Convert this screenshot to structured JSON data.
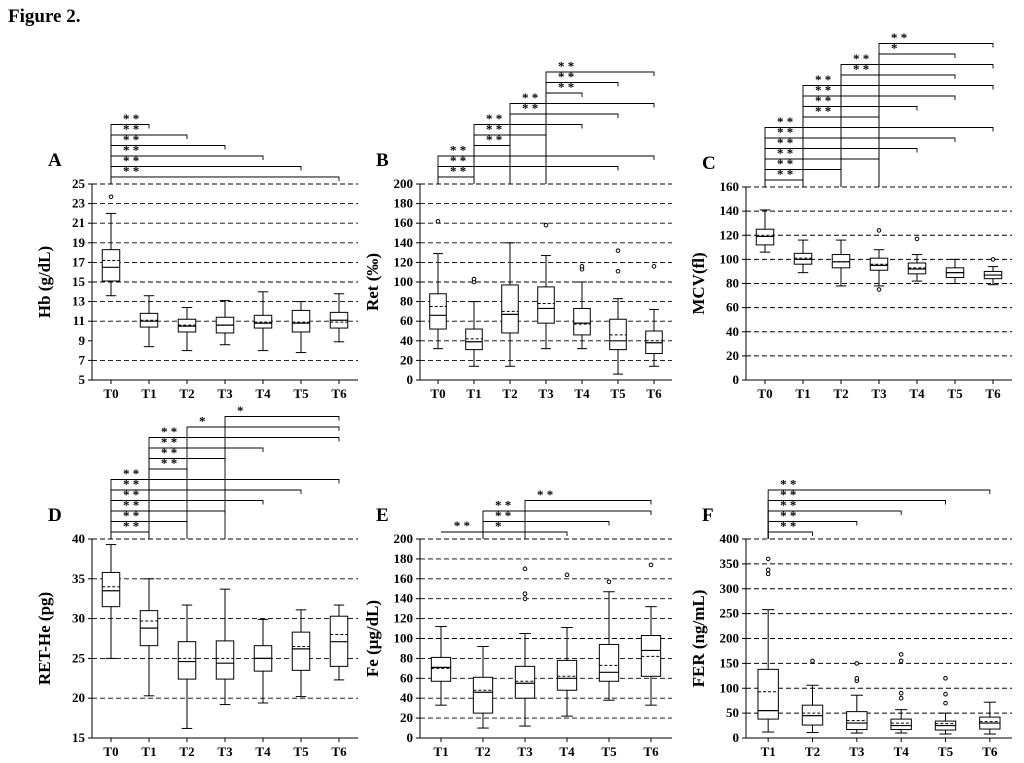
{
  "figure": {
    "title": "Figure 2."
  },
  "chart_data": [
    {
      "type": "box",
      "panel": "A",
      "ylabel": "Hb (g/dL)",
      "ylim": [
        5,
        25
      ],
      "yticks": [
        5,
        7,
        9,
        11,
        13,
        15,
        17,
        19,
        21,
        23,
        25
      ],
      "dashed_lines": [
        7,
        11,
        13,
        15,
        17,
        19,
        21,
        23,
        25
      ],
      "categories": [
        "T0",
        "T1",
        "T2",
        "T3",
        "T4",
        "T5",
        "T6"
      ],
      "boxes": [
        {
          "min": 13.6,
          "q1": 15.1,
          "median": 16.5,
          "mean": 17.2,
          "q3": 18.3,
          "max": 22.0,
          "outliers": [
            23.7
          ]
        },
        {
          "min": 8.4,
          "q1": 10.4,
          "median": 11.0,
          "mean": 11.1,
          "q3": 11.8,
          "max": 13.6,
          "outliers": []
        },
        {
          "min": 8.0,
          "q1": 9.9,
          "median": 10.5,
          "mean": 10.6,
          "q3": 11.2,
          "max": 12.4,
          "outliers": []
        },
        {
          "min": 8.6,
          "q1": 9.8,
          "median": 10.6,
          "mean": 10.6,
          "q3": 11.4,
          "max": 13.1,
          "outliers": []
        },
        {
          "min": 8.0,
          "q1": 10.3,
          "median": 10.8,
          "mean": 10.9,
          "q3": 11.6,
          "max": 14.0,
          "outliers": []
        },
        {
          "min": 7.8,
          "q1": 9.9,
          "median": 10.8,
          "mean": 10.9,
          "q3": 12.1,
          "max": 13.0,
          "outliers": []
        },
        {
          "min": 8.9,
          "q1": 10.3,
          "median": 11.1,
          "mean": 10.9,
          "q3": 11.9,
          "max": 13.8,
          "outliers": []
        }
      ],
      "significance": [
        {
          "from": 0,
          "to": 6,
          "label": "* *"
        },
        {
          "from": 0,
          "to": 5,
          "label": "* *"
        },
        {
          "from": 0,
          "to": 4,
          "label": "* *"
        },
        {
          "from": 0,
          "to": 3,
          "label": "* *"
        },
        {
          "from": 0,
          "to": 2,
          "label": "* *"
        },
        {
          "from": 0,
          "to": 1,
          "label": "* *"
        }
      ]
    },
    {
      "type": "box",
      "panel": "B",
      "ylabel": "Ret (‰)",
      "ylim": [
        0,
        200
      ],
      "yticks": [
        0,
        20,
        40,
        60,
        80,
        100,
        120,
        140,
        160,
        180,
        200
      ],
      "dashed_lines": [
        20,
        40,
        60,
        80,
        100,
        120,
        140,
        160,
        180,
        200
      ],
      "categories": [
        "T0",
        "T1",
        "T2",
        "T3",
        "T4",
        "T5",
        "T6"
      ],
      "boxes": [
        {
          "min": 32,
          "q1": 52,
          "median": 66,
          "mean": 75,
          "q3": 88,
          "max": 129,
          "outliers": [
            162
          ]
        },
        {
          "min": 14,
          "q1": 31,
          "median": 39,
          "mean": 42,
          "q3": 52,
          "max": 80,
          "outliers": [
            100,
            103
          ]
        },
        {
          "min": 14,
          "q1": 48,
          "median": 67,
          "mean": 70,
          "q3": 97,
          "max": 140,
          "outliers": []
        },
        {
          "min": 32,
          "q1": 58,
          "median": 73,
          "mean": 78,
          "q3": 95,
          "max": 127,
          "outliers": [
            158
          ]
        },
        {
          "min": 32,
          "q1": 46,
          "median": 58,
          "mean": 57,
          "q3": 73,
          "max": 100,
          "outliers": [
            113,
            116
          ]
        },
        {
          "min": 6,
          "q1": 31,
          "median": 40,
          "mean": 46,
          "q3": 62,
          "max": 83,
          "outliers": [
            111,
            132
          ]
        },
        {
          "min": 14,
          "q1": 27,
          "median": 38,
          "mean": 40,
          "q3": 50,
          "max": 72,
          "outliers": [
            116
          ]
        }
      ],
      "significance": [
        {
          "from": 0,
          "to": 1,
          "label": "* *"
        },
        {
          "from": 0,
          "to": 5,
          "label": "* *"
        },
        {
          "from": 0,
          "to": 6,
          "label": "* *"
        },
        {
          "from": 1,
          "to": 2,
          "label": "* *"
        },
        {
          "from": 1,
          "to": 3,
          "label": "* *"
        },
        {
          "from": 1,
          "to": 4,
          "label": "* *"
        },
        {
          "from": 2,
          "to": 5,
          "label": "* *"
        },
        {
          "from": 2,
          "to": 6,
          "label": "* *"
        },
        {
          "from": 3,
          "to": 4,
          "label": "* *"
        },
        {
          "from": 3,
          "to": 5,
          "label": "* *"
        },
        {
          "from": 3,
          "to": 6,
          "label": "* *"
        }
      ]
    },
    {
      "type": "box",
      "panel": "C",
      "ylabel": "MCV(fl)",
      "ylim": [
        0,
        160
      ],
      "yticks": [
        0,
        20,
        40,
        60,
        80,
        100,
        120,
        140,
        160
      ],
      "dashed_lines": [
        20,
        40,
        60,
        80,
        100,
        120,
        140,
        160
      ],
      "categories": [
        "T0",
        "T1",
        "T2",
        "T3",
        "T4",
        "T5",
        "T6"
      ],
      "boxes": [
        {
          "min": 106,
          "q1": 112,
          "median": 119,
          "mean": 120,
          "q3": 125,
          "max": 141,
          "outliers": []
        },
        {
          "min": 89,
          "q1": 96,
          "median": 100,
          "mean": 101,
          "q3": 105,
          "max": 116,
          "outliers": []
        },
        {
          "min": 78,
          "q1": 93,
          "median": 98,
          "mean": 98,
          "q3": 104,
          "max": 116,
          "outliers": []
        },
        {
          "min": 78,
          "q1": 91,
          "median": 95,
          "mean": 96,
          "q3": 101,
          "max": 108,
          "outliers": [
            75,
            124
          ]
        },
        {
          "min": 82,
          "q1": 88,
          "median": 92,
          "mean": 93,
          "q3": 97,
          "max": 104,
          "outliers": [
            117
          ]
        },
        {
          "min": 80,
          "q1": 85,
          "median": 89,
          "mean": 89,
          "q3": 93,
          "max": 100,
          "outliers": []
        },
        {
          "min": 79,
          "q1": 84,
          "median": 87,
          "mean": 87,
          "q3": 90,
          "max": 94,
          "outliers": [
            100
          ]
        }
      ],
      "significance": [
        {
          "from": 0,
          "to": 1,
          "label": "* *"
        },
        {
          "from": 0,
          "to": 2,
          "label": "* *"
        },
        {
          "from": 0,
          "to": 3,
          "label": "* *"
        },
        {
          "from": 0,
          "to": 4,
          "label": "* *"
        },
        {
          "from": 0,
          "to": 5,
          "label": "* *"
        },
        {
          "from": 0,
          "to": 6,
          "label": "* *"
        },
        {
          "from": 1,
          "to": 3,
          "label": "* *"
        },
        {
          "from": 1,
          "to": 4,
          "label": "* *"
        },
        {
          "from": 1,
          "to": 5,
          "label": "* *"
        },
        {
          "from": 1,
          "to": 6,
          "label": "* *"
        },
        {
          "from": 2,
          "to": 5,
          "label": "* *"
        },
        {
          "from": 2,
          "to": 6,
          "label": "* *"
        },
        {
          "from": 3,
          "to": 5,
          "label": "*"
        },
        {
          "from": 3,
          "to": 6,
          "label": "* *"
        }
      ]
    },
    {
      "type": "box",
      "panel": "D",
      "ylabel": "RET-He (pg)",
      "ylim": [
        15,
        40
      ],
      "yticks": [
        15,
        20,
        25,
        30,
        35,
        40
      ],
      "dashed_lines": [
        20,
        25,
        30,
        35,
        40
      ],
      "categories": [
        "T0",
        "T1",
        "T2",
        "T3",
        "T4",
        "T5",
        "T6"
      ],
      "boxes": [
        {
          "min": 25.0,
          "q1": 31.5,
          "median": 33.5,
          "mean": 34.0,
          "q3": 35.8,
          "max": 39.3,
          "outliers": []
        },
        {
          "min": 20.3,
          "q1": 26.6,
          "median": 28.8,
          "mean": 29.7,
          "q3": 31.0,
          "max": 35.0,
          "outliers": []
        },
        {
          "min": 16.2,
          "q1": 22.4,
          "median": 24.6,
          "mean": 25.0,
          "q3": 27.1,
          "max": 31.7,
          "outliers": []
        },
        {
          "min": 19.2,
          "q1": 22.4,
          "median": 24.4,
          "mean": 25.0,
          "q3": 27.2,
          "max": 33.7,
          "outliers": []
        },
        {
          "min": 19.4,
          "q1": 23.4,
          "median": 25.0,
          "mean": 25.0,
          "q3": 26.6,
          "max": 29.9,
          "outliers": []
        },
        {
          "min": 20.2,
          "q1": 23.5,
          "median": 26.2,
          "mean": 26.5,
          "q3": 28.3,
          "max": 31.1,
          "outliers": []
        },
        {
          "min": 22.3,
          "q1": 24.0,
          "median": 27.1,
          "mean": 28.0,
          "q3": 30.3,
          "max": 31.7,
          "outliers": []
        }
      ],
      "significance": [
        {
          "from": 0,
          "to": 1,
          "label": "* *"
        },
        {
          "from": 0,
          "to": 2,
          "label": "* *"
        },
        {
          "from": 0,
          "to": 3,
          "label": "* *"
        },
        {
          "from": 0,
          "to": 4,
          "label": "* *"
        },
        {
          "from": 0,
          "to": 5,
          "label": "* *"
        },
        {
          "from": 0,
          "to": 6,
          "label": "* *"
        },
        {
          "from": 1,
          "to": 2,
          "label": "* *"
        },
        {
          "from": 1,
          "to": 3,
          "label": "* *"
        },
        {
          "from": 1,
          "to": 4,
          "label": "* *"
        },
        {
          "from": 1,
          "to": 6,
          "label": "* *"
        },
        {
          "from": 2,
          "to": 6,
          "label": "*"
        },
        {
          "from": 3,
          "to": 6,
          "label": "*"
        }
      ]
    },
    {
      "type": "box",
      "panel": "E",
      "ylabel": "Fe (μg/dL)",
      "ylim": [
        0,
        200
      ],
      "yticks": [
        0,
        20,
        40,
        60,
        80,
        100,
        120,
        140,
        160,
        180,
        200
      ],
      "dashed_lines": [
        20,
        40,
        60,
        80,
        100,
        120,
        140,
        160,
        180,
        200
      ],
      "categories": [
        "T1",
        "T2",
        "T3",
        "T4",
        "T5",
        "T6"
      ],
      "boxes": [
        {
          "min": 33,
          "q1": 57,
          "median": 71,
          "mean": 70,
          "q3": 81,
          "max": 112,
          "outliers": []
        },
        {
          "min": 10,
          "q1": 25,
          "median": 46,
          "mean": 48,
          "q3": 61,
          "max": 92,
          "outliers": []
        },
        {
          "min": 12,
          "q1": 40,
          "median": 55,
          "mean": 57,
          "q3": 72,
          "max": 105,
          "outliers": [
            140,
            145,
            170
          ]
        },
        {
          "min": 22,
          "q1": 48,
          "median": 60,
          "mean": 62,
          "q3": 78,
          "max": 111,
          "outliers": [
            164
          ]
        },
        {
          "min": 38,
          "q1": 57,
          "median": 66,
          "mean": 73,
          "q3": 94,
          "max": 147,
          "outliers": [
            157
          ]
        },
        {
          "min": 33,
          "q1": 62,
          "median": 88,
          "mean": 82,
          "q3": 103,
          "max": 132,
          "outliers": [
            174
          ]
        }
      ],
      "significance": [
        {
          "from": 0,
          "to": 1,
          "label": "* *",
          "bracket": "down"
        },
        {
          "from": 1,
          "to": 3,
          "label": "*"
        },
        {
          "from": 1,
          "to": 4,
          "label": "* *"
        },
        {
          "from": 1,
          "to": 5,
          "label": "* *"
        },
        {
          "from": 2,
          "to": 5,
          "label": "* *"
        }
      ]
    },
    {
      "type": "box",
      "panel": "F",
      "ylabel": "FER (ng/mL)",
      "ylim": [
        0,
        400
      ],
      "yticks": [
        0,
        50,
        100,
        150,
        200,
        250,
        300,
        350,
        400
      ],
      "dashed_lines": [
        50,
        100,
        150,
        200,
        250,
        300,
        350,
        400
      ],
      "categories": [
        "T1",
        "T2",
        "T3",
        "T4",
        "T5",
        "T6"
      ],
      "boxes": [
        {
          "min": 12,
          "q1": 38,
          "median": 55,
          "mean": 93,
          "q3": 138,
          "max": 258,
          "outliers": [
            330,
            338,
            360
          ]
        },
        {
          "min": 11,
          "q1": 26,
          "median": 45,
          "mean": 50,
          "q3": 66,
          "max": 106,
          "outliers": [
            155
          ]
        },
        {
          "min": 10,
          "q1": 17,
          "median": 30,
          "mean": 35,
          "q3": 53,
          "max": 86,
          "outliers": [
            115,
            120,
            150
          ]
        },
        {
          "min": 10,
          "q1": 17,
          "median": 25,
          "mean": 30,
          "q3": 38,
          "max": 57,
          "outliers": [
            80,
            90,
            155,
            168
          ]
        },
        {
          "min": 8,
          "q1": 16,
          "median": 25,
          "mean": 29,
          "q3": 34,
          "max": 50,
          "outliers": [
            70,
            88,
            120
          ]
        },
        {
          "min": 8,
          "q1": 18,
          "median": 30,
          "mean": 33,
          "q3": 42,
          "max": 72,
          "outliers": []
        }
      ],
      "significance": [
        {
          "from": 0,
          "to": 1,
          "label": "* *"
        },
        {
          "from": 0,
          "to": 2,
          "label": "* *"
        },
        {
          "from": 0,
          "to": 3,
          "label": "* *"
        },
        {
          "from": 0,
          "to": 4,
          "label": "* *"
        },
        {
          "from": 0,
          "to": 5,
          "label": "* *"
        }
      ]
    }
  ]
}
